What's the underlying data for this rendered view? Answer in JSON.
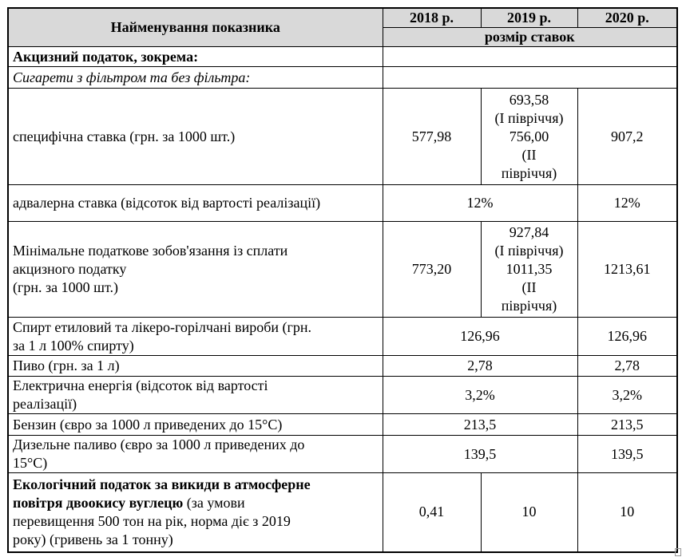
{
  "header": {
    "indicator": "Найменування показника",
    "years": [
      "2018 р.",
      "2019 р.",
      "2020 р."
    ],
    "subheader": "розмір ставок"
  },
  "rows": {
    "excise": "Акцизний податок, зокрема:",
    "cigarettes": "Сигарети з фільтром та без фільтра:",
    "specific": {
      "label": "специфічна ставка (грн. за 1000 шт.)",
      "y2018": "577,98",
      "y2019": [
        "693,58",
        "(I півріччя)",
        "756,00",
        "(II",
        "півріччя)"
      ],
      "y2020": "907,2"
    },
    "advalorem": {
      "label": "адвалерна ставка (відсоток від вартості реалізації)",
      "y2018_2019": "12%",
      "y2020": "12%"
    },
    "minimal": {
      "label": [
        "Мінімальне податкове зобов'язання із сплати",
        "акцизного податку",
        "(грн. за 1000 шт.)"
      ],
      "y2018": "773,20",
      "y2019": [
        "927,84",
        "(I півріччя)",
        "1011,35",
        "(II",
        "півріччя)"
      ],
      "y2020": "1213,61"
    },
    "alcohol": {
      "label": [
        "Спирт етиловий та лікеро-горілчані вироби (грн.",
        "за 1 л 100% спирту)"
      ],
      "y2018_2019": "126,96",
      "y2020": "126,96"
    },
    "beer": {
      "label": "Пиво (грн. за 1 л)",
      "y2018_2019": "2,78",
      "y2020": "2,78"
    },
    "electricity": {
      "label": [
        "Електрична енергія (відсоток від вартості",
        "реалізації)"
      ],
      "y2018_2019": "3,2%",
      "y2020": "3,2%"
    },
    "petrol": {
      "label": "Бензин (євро за 1000 л приведених до 15°С)",
      "y2018_2019": "213,5",
      "y2020": "213,5"
    },
    "diesel": {
      "label": [
        "Дизельне паливо (євро за 1000 л приведених до",
        "15°С)"
      ],
      "y2018_2019": "139,5",
      "y2020": "139,5"
    },
    "eco": {
      "label_bold": [
        "Екологічний податок за викиди в атмосферне",
        "повітря двоокису вуглецю"
      ],
      "label_rest": [
        " (за умови",
        "перевищення 500 тон на рік, норма діє з 2019",
        "року) (гривень за 1 тонну)"
      ],
      "y2018": "0,41",
      "y2019": "10",
      "y2020": "10"
    }
  }
}
